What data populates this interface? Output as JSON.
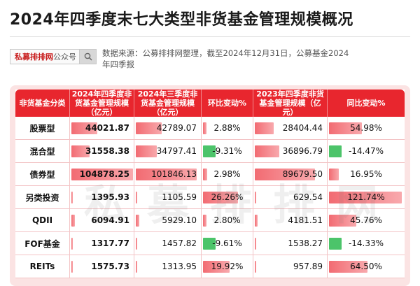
{
  "header": {
    "title": "2024年四季度末七大类型非货基金管理规模概况",
    "search_brand": "私募排排网",
    "search_suffix": "公众号",
    "source_text": "数据来源：公募排排网整理，截至2024年12月31日，公募基金2024年四季报"
  },
  "table": {
    "headers": [
      "非货基金分类",
      "2024年四季度非货基金管理规模（亿元）",
      "2024年三季度非货基金管理规模（亿元）",
      "环比变动%",
      "2023年四季度非货基金管理规模（亿元）",
      "同比变动%"
    ],
    "rows": [
      {
        "category": "股票型",
        "q4_2024": "44021.87",
        "q3_2024": "42789.07",
        "qoq": "2.88%",
        "q4_2023": "28404.44",
        "yoy": "54.98%"
      },
      {
        "category": "混合型",
        "q4_2024": "31558.38",
        "q3_2024": "34797.41",
        "qoq": "-9.31%",
        "q4_2023": "36896.79",
        "yoy": "-14.47%"
      },
      {
        "category": "债券型",
        "q4_2024": "104878.25",
        "q3_2024": "101846.13",
        "qoq": "2.98%",
        "q4_2023": "89679.50",
        "yoy": "16.95%"
      },
      {
        "category": "另类投资",
        "q4_2024": "1395.93",
        "q3_2024": "1105.59",
        "qoq": "26.26%",
        "q4_2023": "629.54",
        "yoy": "121.74%"
      },
      {
        "category": "QDII",
        "q4_2024": "6094.91",
        "q3_2024": "5929.10",
        "qoq": "2.80%",
        "q4_2023": "4181.51",
        "yoy": "45.76%"
      },
      {
        "category": "FOF基金",
        "q4_2024": "1317.77",
        "q3_2024": "1457.82",
        "qoq": "-9.61%",
        "q4_2023": "1538.27",
        "yoy": "-14.33%"
      },
      {
        "category": "REITs",
        "q4_2024": "1575.73",
        "q3_2024": "1313.95",
        "qoq": "19.92%",
        "q4_2023": "957.89",
        "yoy": "64.50%"
      }
    ],
    "bar_values": {
      "q4_2024": [
        44021.87,
        31558.38,
        104878.25,
        1395.93,
        6094.91,
        1317.77,
        1575.73
      ],
      "q3_2024": [
        42789.07,
        34797.41,
        101846.13,
        1105.59,
        5929.1,
        1457.82,
        1313.95
      ],
      "qoq": [
        2.88,
        -9.31,
        2.98,
        26.26,
        2.8,
        -9.61,
        19.92
      ],
      "q4_2023": [
        28404.44,
        36896.79,
        89679.5,
        629.54,
        4181.51,
        1538.27,
        957.89
      ],
      "yoy": [
        54.98,
        -14.47,
        16.95,
        121.74,
        45.76,
        -14.33,
        64.5
      ]
    }
  },
  "colors": {
    "header_red": "#e8262e",
    "bar_red": "#f26b72",
    "bar_green": "#4cc46a",
    "card_pink": "#fbe3e3"
  },
  "icons": {
    "search": "search-icon"
  }
}
